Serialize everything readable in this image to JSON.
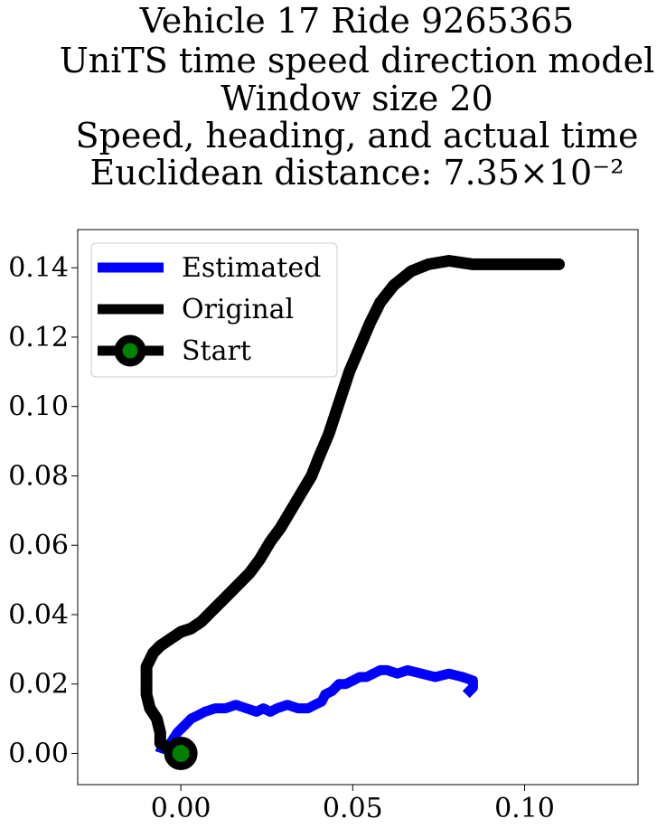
{
  "chart_data": {
    "type": "line",
    "title_lines": [
      "Vehicle 17 Ride 9265365",
      "UniTS time speed direction model",
      "Window size 20",
      "Speed, heading, and actual time",
      "Euclidean distance: 7.35×10⁻²"
    ],
    "xlabel": "",
    "ylabel": "",
    "xlim": [
      -0.03,
      0.133
    ],
    "ylim": [
      -0.009,
      0.151
    ],
    "xticks": [
      0.0,
      0.05,
      0.1
    ],
    "xtick_labels": [
      "0.00",
      "0.05",
      "0.10"
    ],
    "yticks": [
      0.0,
      0.02,
      0.04,
      0.06,
      0.08,
      0.1,
      0.12,
      0.14
    ],
    "ytick_labels": [
      "0.00",
      "0.02",
      "0.04",
      "0.06",
      "0.08",
      "0.10",
      "0.12",
      "0.14"
    ],
    "grid": false,
    "legend_position": "upper-left",
    "series": [
      {
        "name": "Estimated",
        "color": "#0000ff",
        "points": [
          [
            -0.007,
            0.002
          ],
          [
            -0.004,
            0.001
          ],
          [
            -0.003,
            0.003
          ],
          [
            -0.001,
            0.006
          ],
          [
            0.001,
            0.008
          ],
          [
            0.003,
            0.01
          ],
          [
            0.005,
            0.011
          ],
          [
            0.007,
            0.012
          ],
          [
            0.01,
            0.013
          ],
          [
            0.013,
            0.013
          ],
          [
            0.016,
            0.014
          ],
          [
            0.019,
            0.013
          ],
          [
            0.022,
            0.012
          ],
          [
            0.024,
            0.013
          ],
          [
            0.026,
            0.012
          ],
          [
            0.028,
            0.013
          ],
          [
            0.031,
            0.014
          ],
          [
            0.034,
            0.013
          ],
          [
            0.037,
            0.013
          ],
          [
            0.039,
            0.014
          ],
          [
            0.041,
            0.015
          ],
          [
            0.042,
            0.017
          ],
          [
            0.044,
            0.018
          ],
          [
            0.046,
            0.02
          ],
          [
            0.048,
            0.02
          ],
          [
            0.05,
            0.021
          ],
          [
            0.052,
            0.022
          ],
          [
            0.054,
            0.022
          ],
          [
            0.056,
            0.023
          ],
          [
            0.058,
            0.024
          ],
          [
            0.06,
            0.024
          ],
          [
            0.063,
            0.023
          ],
          [
            0.066,
            0.024
          ],
          [
            0.07,
            0.023
          ],
          [
            0.074,
            0.022
          ],
          [
            0.078,
            0.023
          ],
          [
            0.082,
            0.022
          ],
          [
            0.085,
            0.021
          ],
          [
            0.085,
            0.019
          ],
          [
            0.083,
            0.017
          ]
        ]
      },
      {
        "name": "Original",
        "color": "#000000",
        "points": [
          [
            0.0,
            0.0
          ],
          [
            -0.003,
            0.001
          ],
          [
            -0.006,
            0.003
          ],
          [
            -0.006,
            0.006
          ],
          [
            -0.007,
            0.01
          ],
          [
            -0.009,
            0.013
          ],
          [
            -0.01,
            0.017
          ],
          [
            -0.01,
            0.021
          ],
          [
            -0.01,
            0.025
          ],
          [
            -0.008,
            0.029
          ],
          [
            -0.006,
            0.031
          ],
          [
            -0.003,
            0.033
          ],
          [
            0.0,
            0.035
          ],
          [
            0.003,
            0.036
          ],
          [
            0.006,
            0.038
          ],
          [
            0.009,
            0.041
          ],
          [
            0.012,
            0.044
          ],
          [
            0.016,
            0.048
          ],
          [
            0.02,
            0.052
          ],
          [
            0.023,
            0.056
          ],
          [
            0.026,
            0.061
          ],
          [
            0.029,
            0.065
          ],
          [
            0.032,
            0.07
          ],
          [
            0.035,
            0.075
          ],
          [
            0.038,
            0.08
          ],
          [
            0.04,
            0.085
          ],
          [
            0.043,
            0.092
          ],
          [
            0.045,
            0.098
          ],
          [
            0.047,
            0.104
          ],
          [
            0.049,
            0.11
          ],
          [
            0.052,
            0.117
          ],
          [
            0.055,
            0.124
          ],
          [
            0.058,
            0.13
          ],
          [
            0.062,
            0.135
          ],
          [
            0.067,
            0.139
          ],
          [
            0.072,
            0.141
          ],
          [
            0.078,
            0.142
          ],
          [
            0.085,
            0.141
          ],
          [
            0.092,
            0.141
          ],
          [
            0.1,
            0.141
          ],
          [
            0.106,
            0.141
          ],
          [
            0.11,
            0.141
          ]
        ]
      },
      {
        "name": "Start",
        "color": "#000000",
        "marker_fill": "#008000",
        "points": [
          [
            0.0,
            0.0
          ]
        ]
      }
    ],
    "legend": [
      {
        "label": "Estimated",
        "color": "#0000ff"
      },
      {
        "label": "Original",
        "color": "#000000"
      },
      {
        "label": "Start",
        "color": "#000000",
        "marker_fill": "#008000"
      }
    ]
  }
}
